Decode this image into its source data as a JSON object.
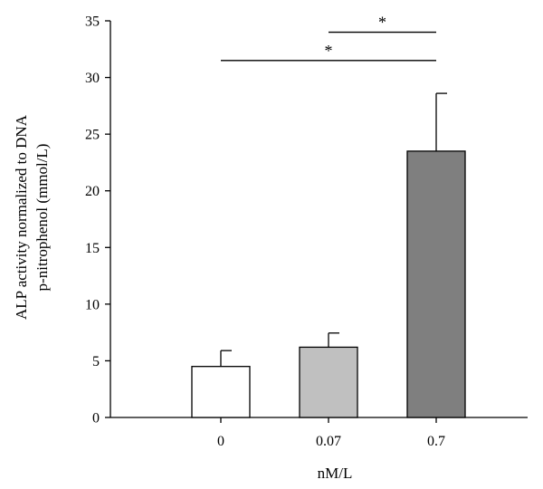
{
  "chart_data": {
    "type": "bar",
    "categories": [
      "0",
      "0.07",
      "0.7"
    ],
    "values": [
      4.5,
      6.2,
      23.5
    ],
    "errors": [
      1.4,
      1.25,
      5.1
    ],
    "bar_colors": [
      "#ffffff",
      "#c0c0c0",
      "#7f7f7f"
    ],
    "ylim": [
      0,
      35
    ],
    "yticks": [
      0,
      5,
      10,
      15,
      20,
      25,
      30,
      35
    ],
    "xlabel": "nM/L",
    "ylabel_lines": [
      "ALP activity normalized to DNA",
      "p-nitrophenol (mmol/L)"
    ],
    "grid": false,
    "significance": [
      {
        "from": "0.07",
        "to": "0.7",
        "y": 34,
        "label": "*"
      },
      {
        "from": "0",
        "to": "0.7",
        "y": 31.5,
        "label": "*"
      }
    ]
  }
}
